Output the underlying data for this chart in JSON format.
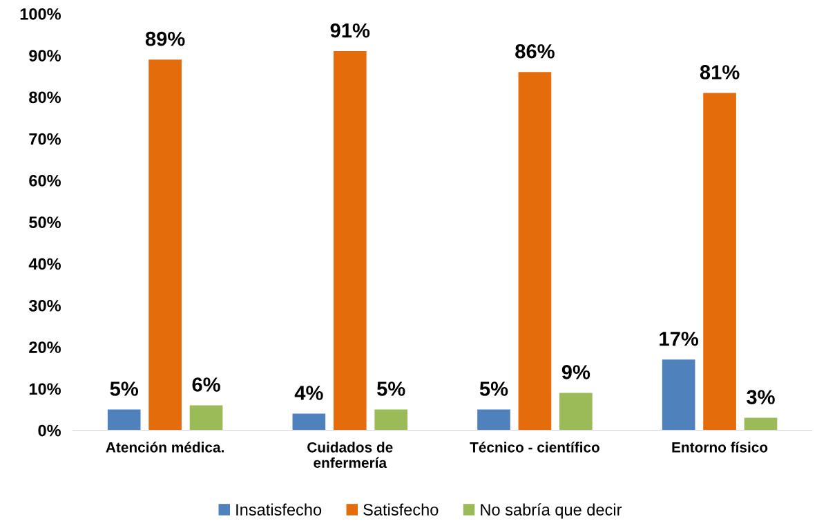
{
  "chart_data": {
    "type": "bar",
    "categories": [
      "Atención médica.",
      "Cuidados de\nenfermería",
      "Técnico - científico",
      "Entorno físico"
    ],
    "series": [
      {
        "name": "Insatisfecho",
        "color": "#4f81bd",
        "values": [
          5,
          4,
          5,
          17
        ],
        "value_labels": [
          "5%",
          "4%",
          "5%",
          "17%"
        ]
      },
      {
        "name": "Satisfecho",
        "color": "#e46c0a",
        "values": [
          89,
          91,
          86,
          81
        ],
        "value_labels": [
          "89%",
          "91%",
          "86%",
          "81%"
        ]
      },
      {
        "name": "No sabría que decir",
        "color": "#9bbb59",
        "values": [
          6,
          5,
          9,
          3
        ],
        "value_labels": [
          "6%",
          "5%",
          "9%",
          "3%"
        ]
      }
    ],
    "ylim": [
      0,
      100
    ],
    "yticks": [
      {
        "value": 0,
        "label": "0%"
      },
      {
        "value": 10,
        "label": "10%"
      },
      {
        "value": 20,
        "label": "20%"
      },
      {
        "value": 30,
        "label": "30%"
      },
      {
        "value": 40,
        "label": "40%"
      },
      {
        "value": 50,
        "label": "50%"
      },
      {
        "value": 60,
        "label": "60%"
      },
      {
        "value": 70,
        "label": "70%"
      },
      {
        "value": 80,
        "label": "80%"
      },
      {
        "value": 90,
        "label": "90%"
      },
      {
        "value": 100,
        "label": "100%"
      }
    ],
    "grid": false,
    "legend": "bottom"
  }
}
